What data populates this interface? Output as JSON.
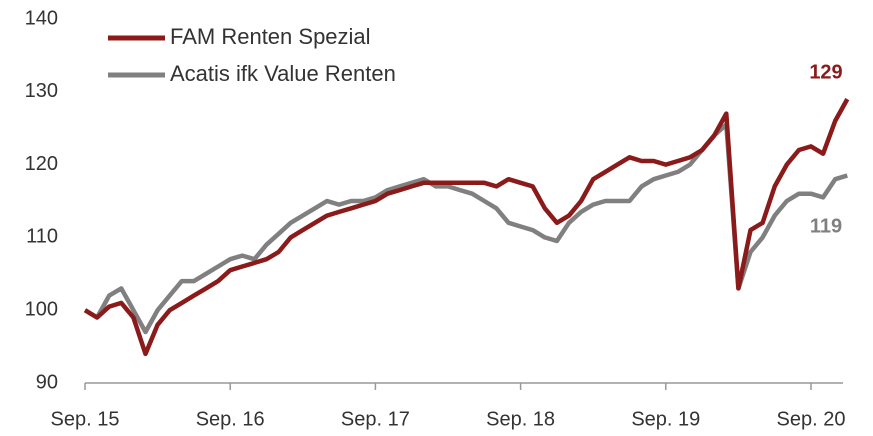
{
  "chart_data": {
    "type": "line",
    "categories": [
      "Sep. 15",
      null,
      null,
      null,
      null,
      null,
      null,
      null,
      null,
      null,
      null,
      null,
      "Sep. 16",
      null,
      null,
      null,
      null,
      null,
      null,
      null,
      null,
      null,
      null,
      null,
      "Sep. 17",
      null,
      null,
      null,
      null,
      null,
      null,
      null,
      null,
      null,
      null,
      null,
      "Sep. 18",
      null,
      null,
      null,
      null,
      null,
      null,
      null,
      null,
      null,
      null,
      null,
      "Sep. 19",
      null,
      null,
      null,
      null,
      null,
      null,
      null,
      null,
      null,
      null,
      null,
      "Sep. 20",
      null,
      null,
      null
    ],
    "series": [
      {
        "name": "FAM Renten Spezial",
        "color": "#8b1a1a",
        "end_label": "129",
        "values": [
          100,
          99,
          100.5,
          101,
          99,
          94,
          98,
          100,
          101,
          102,
          103,
          104,
          105.5,
          106,
          106.5,
          107,
          108,
          110,
          111,
          112,
          113,
          113.5,
          114,
          114.5,
          115,
          116,
          116.5,
          117,
          117.5,
          117.5,
          117.5,
          117.5,
          117.5,
          117.5,
          117,
          118,
          117.5,
          117,
          114,
          112,
          113,
          115,
          118,
          119,
          120,
          121,
          120.5,
          120.5,
          120,
          120.5,
          121,
          122,
          124,
          127,
          103,
          111,
          112,
          117,
          120,
          122,
          122.5,
          121.5,
          126,
          129
        ]
      },
      {
        "name": "Acatis ifk Value Renten",
        "color": "#808080",
        "end_label": "119",
        "values": [
          100,
          99,
          102,
          103,
          100,
          97,
          100,
          102,
          104,
          104,
          105,
          106,
          107,
          107.5,
          107,
          109,
          110.5,
          112,
          113,
          114,
          115,
          114.5,
          115,
          115,
          115.5,
          116.5,
          117,
          117.5,
          118,
          117,
          117,
          116.5,
          116,
          115,
          114,
          112,
          111.5,
          111,
          110,
          109.5,
          112,
          113.5,
          114.5,
          115,
          115,
          115,
          117,
          118,
          118.5,
          119,
          120,
          122,
          124,
          125.5,
          103,
          108,
          110,
          113,
          115,
          116,
          116,
          115.5,
          118,
          118.5
        ]
      }
    ],
    "ylim": [
      90,
      140
    ],
    "yticks": [
      90,
      100,
      110,
      120,
      130,
      140
    ],
    "grid": false,
    "legend": "top-left"
  }
}
